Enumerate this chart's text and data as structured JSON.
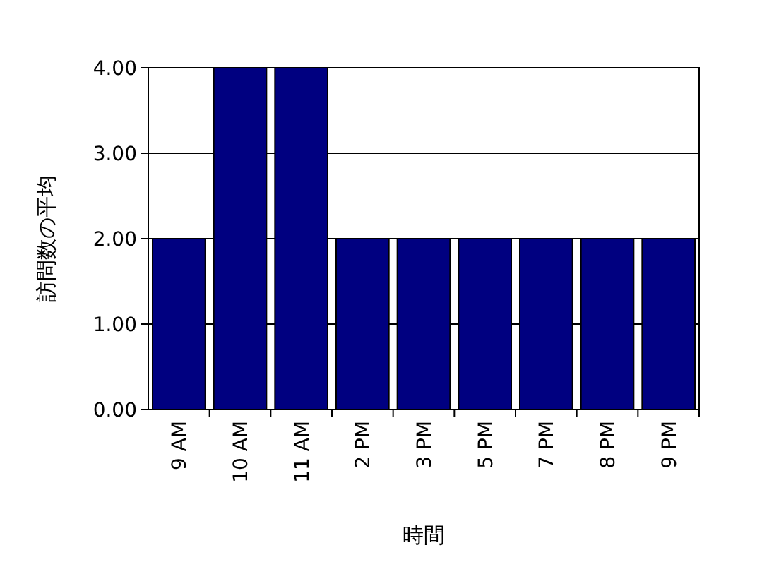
{
  "chart_data": {
    "type": "bar",
    "xlabel": "時間",
    "ylabel": "訪問数の平均",
    "categories": [
      "9 AM",
      "10 AM",
      "11 AM",
      "2 PM",
      "3 PM",
      "5 PM",
      "7 PM",
      "8 PM",
      "9 PM"
    ],
    "values": [
      2,
      4,
      4,
      2,
      2,
      2,
      2,
      2,
      2
    ],
    "color": "#000080",
    "ylim": [
      0,
      4
    ],
    "yticks": [
      {
        "value": 0,
        "label": "0.00"
      },
      {
        "value": 1,
        "label": "1.00"
      },
      {
        "value": 2,
        "label": "2.00"
      },
      {
        "value": 3,
        "label": "3.00"
      },
      {
        "value": 4,
        "label": "4.00"
      }
    ],
    "grid": "y"
  }
}
